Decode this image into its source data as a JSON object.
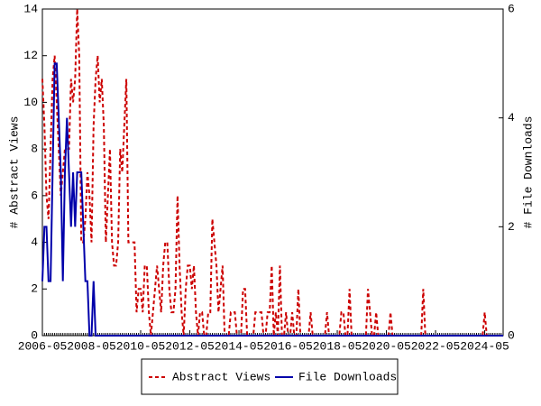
{
  "chart_data": {
    "type": "line",
    "ylabel": "# Abstract Views",
    "y2label": "# File Downloads",
    "x": [
      "2006-05",
      "2006-06",
      "2006-07",
      "2006-08",
      "2006-09",
      "2006-10",
      "2006-11",
      "2006-12",
      "2007-01",
      "2007-02",
      "2007-03",
      "2007-04",
      "2007-05",
      "2007-06",
      "2007-07",
      "2007-08",
      "2007-09",
      "2007-10",
      "2007-11",
      "2007-12",
      "2008-01",
      "2008-02",
      "2008-03",
      "2008-04",
      "2008-05",
      "2008-06",
      "2008-07",
      "2008-08",
      "2008-09",
      "2008-10",
      "2008-11",
      "2008-12",
      "2009-01",
      "2009-02",
      "2009-03",
      "2009-04",
      "2009-05",
      "2009-06",
      "2009-07",
      "2009-08",
      "2009-09",
      "2009-10",
      "2009-11",
      "2009-12",
      "2010-01",
      "2010-02",
      "2010-03",
      "2010-04",
      "2010-05",
      "2010-06",
      "2010-07",
      "2010-08",
      "2010-09",
      "2010-10",
      "2010-11",
      "2010-12",
      "2011-01",
      "2011-02",
      "2011-03",
      "2011-04",
      "2011-05",
      "2011-06",
      "2011-07",
      "2011-08",
      "2011-09",
      "2011-10",
      "2011-11",
      "2011-12",
      "2012-01",
      "2012-02",
      "2012-03",
      "2012-04",
      "2012-05",
      "2012-06",
      "2012-07",
      "2012-08",
      "2012-09",
      "2012-10",
      "2012-11",
      "2012-12",
      "2013-01",
      "2013-02",
      "2013-03",
      "2013-04",
      "2013-05",
      "2013-06",
      "2013-07",
      "2013-08",
      "2013-09",
      "2013-10",
      "2013-11",
      "2013-12",
      "2014-01",
      "2014-02",
      "2014-03",
      "2014-04",
      "2014-05",
      "2014-06",
      "2014-07",
      "2014-08",
      "2014-09",
      "2014-10",
      "2014-11",
      "2014-12",
      "2015-01",
      "2015-02",
      "2015-03",
      "2015-04",
      "2015-05",
      "2015-06",
      "2015-07",
      "2015-08",
      "2015-09",
      "2015-10",
      "2015-11",
      "2015-12",
      "2016-01",
      "2016-02",
      "2016-03",
      "2016-04",
      "2016-05",
      "2016-06",
      "2016-07",
      "2016-08",
      "2016-09",
      "2016-10",
      "2016-11",
      "2016-12",
      "2017-01",
      "2017-02",
      "2017-03",
      "2017-04",
      "2017-05",
      "2017-06",
      "2017-07",
      "2017-08",
      "2017-09",
      "2017-10",
      "2017-11",
      "2017-12",
      "2018-01",
      "2018-02",
      "2018-03",
      "2018-04",
      "2018-05",
      "2018-06",
      "2018-07",
      "2018-08",
      "2018-09",
      "2018-10",
      "2018-11",
      "2018-12",
      "2019-01",
      "2019-02",
      "2019-03",
      "2019-04",
      "2019-05",
      "2019-06",
      "2019-07",
      "2019-08",
      "2019-09",
      "2019-10",
      "2019-11",
      "2019-12",
      "2020-01",
      "2020-02",
      "2020-03",
      "2020-04",
      "2020-05",
      "2020-06",
      "2020-07",
      "2020-08",
      "2020-09",
      "2020-10",
      "2020-11",
      "2020-12",
      "2021-01",
      "2021-02",
      "2021-03",
      "2021-04",
      "2021-05",
      "2021-06",
      "2021-07",
      "2021-08",
      "2021-09",
      "2021-10",
      "2021-11",
      "2021-12",
      "2022-01",
      "2022-02",
      "2022-03",
      "2022-04",
      "2022-05",
      "2022-06",
      "2022-07",
      "2022-08",
      "2022-09",
      "2022-10",
      "2022-11",
      "2022-12",
      "2023-01",
      "2023-02",
      "2023-03",
      "2023-04",
      "2023-05",
      "2023-06",
      "2023-07",
      "2023-08",
      "2023-09",
      "2023-10",
      "2023-11",
      "2023-12",
      "2024-01",
      "2024-02",
      "2024-03",
      "2024-04",
      "2024-05",
      "2024-06",
      "2024-07",
      "2024-08",
      "2024-09",
      "2024-10",
      "2024-11",
      "2024-12",
      "2025-01",
      "2025-02"
    ],
    "series": [
      {
        "name": "Abstract Views",
        "color": "#cc0000",
        "dash": true,
        "values": [
          11,
          9,
          6,
          5,
          8,
          11,
          12,
          10,
          8,
          6,
          7,
          8,
          8,
          8,
          11,
          10,
          11,
          14,
          12,
          4,
          4,
          5,
          7,
          6,
          4,
          9,
          11,
          12,
          10,
          11,
          9,
          4,
          6,
          8,
          4,
          3,
          3,
          4,
          8,
          7,
          9,
          11,
          4,
          4,
          4,
          4,
          1,
          2,
          2,
          1,
          3,
          3,
          1,
          0,
          1,
          2,
          3,
          2,
          1,
          3,
          4,
          4,
          2,
          1,
          1,
          2,
          6,
          3,
          1,
          0,
          2,
          3,
          3,
          2,
          3,
          1,
          0,
          1,
          1,
          0,
          0,
          1,
          1,
          5,
          4,
          3,
          1,
          2,
          3,
          0,
          0,
          0,
          1,
          1,
          1,
          0,
          0,
          0,
          2,
          2,
          0,
          0,
          0,
          0,
          1,
          1,
          1,
          1,
          0,
          0,
          1,
          1,
          3,
          0,
          1,
          0,
          3,
          0,
          0,
          1,
          0,
          0,
          1,
          0,
          0,
          2,
          0,
          0,
          0,
          0,
          0,
          1,
          0,
          0,
          0,
          0,
          0,
          0,
          0,
          1,
          0,
          0,
          0,
          0,
          0,
          0,
          1,
          1,
          0,
          0,
          2,
          0,
          0,
          0,
          0,
          0,
          0,
          0,
          0,
          2,
          1,
          0,
          0,
          1,
          0,
          0,
          0,
          0,
          0,
          0,
          1,
          0,
          0,
          0,
          0,
          0,
          0,
          0,
          0,
          0,
          0,
          0,
          0,
          0,
          0,
          0,
          2,
          0,
          0,
          0,
          0,
          0,
          0,
          0,
          0,
          0,
          0,
          0,
          0,
          0,
          0,
          0,
          0,
          0,
          0,
          0,
          0,
          0,
          0,
          0,
          0,
          0,
          0,
          0,
          0,
          0,
          1,
          0,
          0,
          0,
          0,
          0,
          0,
          0,
          0,
          0
        ]
      },
      {
        "name": "File Downloads",
        "color": "#0000aa",
        "axis": "y2",
        "values": [
          1,
          2,
          2,
          1,
          1,
          3,
          5,
          5,
          4,
          3,
          1,
          3,
          4,
          3,
          2,
          3,
          2,
          3,
          3,
          3,
          2,
          1,
          1,
          0,
          0,
          1,
          0,
          0,
          0,
          0,
          0,
          0,
          0,
          0,
          0,
          0,
          0,
          0,
          0,
          0,
          0,
          0,
          0,
          0,
          0,
          0,
          0,
          0,
          0,
          0,
          0,
          0,
          0,
          0,
          0,
          0,
          0,
          0,
          0,
          0,
          0,
          0,
          0,
          0,
          0,
          0,
          0,
          0,
          0,
          0,
          0,
          0,
          0,
          0,
          0,
          0,
          0,
          0,
          0,
          0,
          0,
          0,
          0,
          0,
          0,
          0,
          0,
          0,
          0,
          0,
          0,
          0,
          0,
          0,
          0,
          0,
          0,
          0,
          0,
          0,
          0,
          0,
          0,
          0,
          0,
          0,
          0,
          0,
          0,
          0,
          0,
          0,
          0,
          0,
          0,
          0,
          0,
          0,
          0,
          0,
          0,
          0,
          0,
          0,
          0,
          0,
          0,
          0,
          0,
          0,
          0,
          0,
          0,
          0,
          0,
          0,
          0,
          0,
          0,
          0,
          0,
          0,
          0,
          0,
          0,
          0,
          0,
          0,
          0,
          0,
          0,
          0,
          0,
          0,
          0,
          0,
          0,
          0,
          0,
          0,
          0,
          0,
          0,
          0,
          0,
          0,
          0,
          0,
          0,
          0,
          0,
          0,
          0,
          0,
          0,
          0,
          0,
          0,
          0,
          0,
          0,
          0,
          0,
          0,
          0,
          0,
          0,
          0,
          0,
          0,
          0,
          0,
          0,
          0,
          0,
          0,
          0,
          0,
          0,
          0,
          0,
          0,
          0,
          0,
          0,
          0,
          0,
          0,
          0,
          0,
          0,
          0,
          0,
          0,
          0,
          0,
          0,
          0,
          0,
          0,
          0,
          0,
          0,
          0,
          0,
          0
        ]
      }
    ],
    "ylim": [
      0,
      14
    ],
    "yticks": [
      0,
      2,
      4,
      6,
      8,
      10,
      12,
      14
    ],
    "y2lim": [
      0,
      6
    ],
    "y2ticks": [
      0,
      2,
      4,
      6
    ],
    "legend": "bottom"
  }
}
